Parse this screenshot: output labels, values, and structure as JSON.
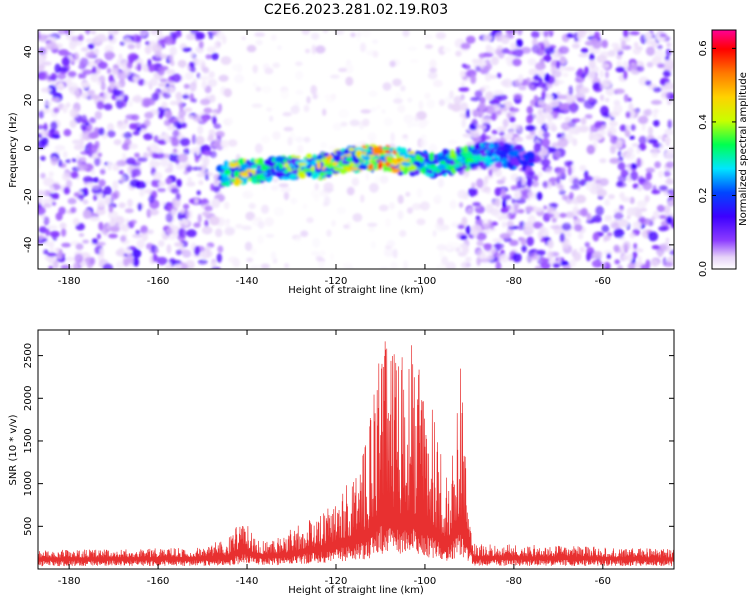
{
  "figure": {
    "title": "C2E6.2023.281.02.19.R03"
  },
  "colors": {
    "snr_line": "#e83030",
    "colormap": [
      "#ffffff",
      "#e6d2f8",
      "#8c3cff",
      "#3c00ff",
      "#0046ff",
      "#00e6ff",
      "#00ff50",
      "#c8ff00",
      "#ffd200",
      "#ff7800",
      "#ff0000",
      "#ff0096"
    ]
  },
  "chart_data": [
    {
      "type": "heatmap",
      "xlabel": "Height of straight line (km)",
      "ylabel": "Frequency (Hz)",
      "xlim": [
        -187,
        -44
      ],
      "ylim": [
        -50,
        49
      ],
      "xticks": [
        -180,
        -160,
        -140,
        -120,
        -100,
        -80,
        -60
      ],
      "yticks": [
        -40,
        -20,
        0,
        20,
        40
      ],
      "colorbar": {
        "label": "Normalized spectral amplitude",
        "range": [
          0,
          0.65
        ],
        "ticks": [
          0.0,
          0.2,
          0.4,
          0.6
        ],
        "tick_labels": [
          "0.0",
          "0.2",
          "0.4",
          "0.6"
        ]
      },
      "noise_regions": [
        {
          "x_range": [
            -187,
            -146
          ],
          "density": 0.95,
          "level": 0.08
        },
        {
          "x_range": [
            -146,
            -92
          ],
          "density": 0.25,
          "level": 0.02
        },
        {
          "x_range": [
            -92,
            -44
          ],
          "density": 0.95,
          "level": 0.08
        }
      ],
      "signal_band": [
        {
          "x": -146,
          "freq": -11,
          "amplitude": 0.3
        },
        {
          "x": -143,
          "freq": -10,
          "amplitude": 0.58
        },
        {
          "x": -135,
          "freq": -9,
          "amplitude": 0.35
        },
        {
          "x": -128,
          "freq": -8,
          "amplitude": 0.45
        },
        {
          "x": -122,
          "freq": -7,
          "amplitude": 0.5
        },
        {
          "x": -118,
          "freq": -5,
          "amplitude": 0.45
        },
        {
          "x": -114,
          "freq": -4,
          "amplitude": 0.6
        },
        {
          "x": -110,
          "freq": -4,
          "amplitude": 0.62
        },
        {
          "x": -106,
          "freq": -5,
          "amplitude": 0.58
        },
        {
          "x": -102,
          "freq": -6,
          "amplitude": 0.4
        },
        {
          "x": -98,
          "freq": -7,
          "amplitude": 0.35
        },
        {
          "x": -93,
          "freq": -5,
          "amplitude": 0.4
        },
        {
          "x": -86,
          "freq": -2,
          "amplitude": 0.3
        },
        {
          "x": -80,
          "freq": -3,
          "amplitude": 0.25
        },
        {
          "x": -76,
          "freq": -7,
          "amplitude": 0.2
        }
      ]
    },
    {
      "type": "line",
      "xlabel": "Height of straight line (km)",
      "ylabel": "SNR (10 * v/v)",
      "xlim": [
        -187,
        -44
      ],
      "ylim": [
        0,
        2800
      ],
      "xticks": [
        -180,
        -160,
        -140,
        -120,
        -100,
        -80,
        -60
      ],
      "yticks": [
        500,
        1000,
        1500,
        2000,
        2500
      ],
      "series": [
        {
          "envelope": [
            {
              "x": -187,
              "baseline": 130,
              "peak": 220
            },
            {
              "x": -150,
              "baseline": 140,
              "peak": 250
            },
            {
              "x": -144,
              "baseline": 160,
              "peak": 380
            },
            {
              "x": -141,
              "baseline": 250,
              "peak": 650
            },
            {
              "x": -138,
              "baseline": 170,
              "peak": 330
            },
            {
              "x": -132,
              "baseline": 180,
              "peak": 420
            },
            {
              "x": -126,
              "baseline": 250,
              "peak": 600
            },
            {
              "x": -122,
              "baseline": 280,
              "peak": 700
            },
            {
              "x": -118,
              "baseline": 350,
              "peak": 1000
            },
            {
              "x": -115,
              "baseline": 400,
              "peak": 1150
            },
            {
              "x": -112,
              "baseline": 500,
              "peak": 1900
            },
            {
              "x": -110,
              "baseline": 700,
              "peak": 2780
            },
            {
              "x": -106,
              "baseline": 650,
              "peak": 2500
            },
            {
              "x": -103,
              "baseline": 650,
              "peak": 2650
            },
            {
              "x": -100,
              "baseline": 550,
              "peak": 2250
            },
            {
              "x": -97,
              "baseline": 450,
              "peak": 1600
            },
            {
              "x": -95,
              "baseline": 330,
              "peak": 1050
            },
            {
              "x": -92,
              "baseline": 600,
              "peak": 2450
            },
            {
              "x": -90,
              "baseline": 300,
              "peak": 900
            },
            {
              "x": -89,
              "baseline": 150,
              "peak": 300
            },
            {
              "x": -60,
              "baseline": 140,
              "peak": 260
            },
            {
              "x": -44,
              "baseline": 130,
              "peak": 230
            }
          ]
        }
      ]
    }
  ]
}
